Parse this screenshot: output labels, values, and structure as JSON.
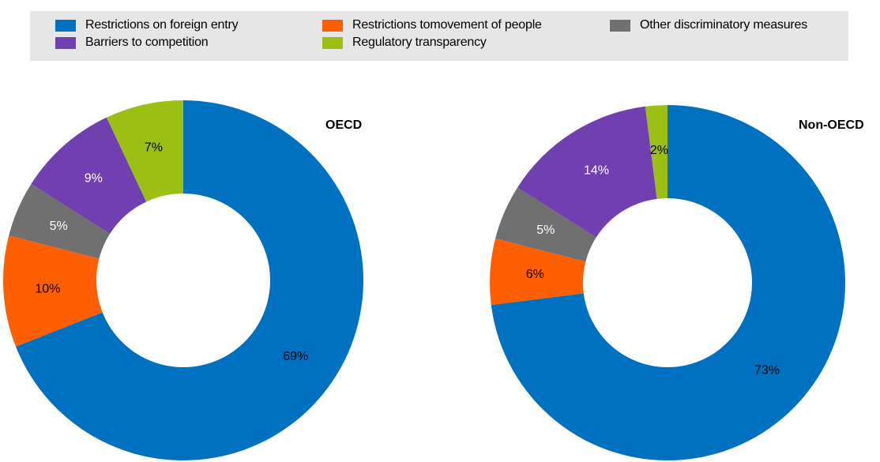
{
  "legend": {
    "items": [
      {
        "label": "Restrictions on foreign entry",
        "color": "#0070c0"
      },
      {
        "label": "Restrictions tomovement of people",
        "color": "#ff5f00"
      },
      {
        "label": "Other discriminatory measures",
        "color": "#707070"
      },
      {
        "label": "Barriers to competition",
        "color": "#7040b0"
      },
      {
        "label": "Regulatory transparency",
        "color": "#9bbf12"
      }
    ]
  },
  "chart_data": [
    {
      "type": "pie",
      "title": "OECD",
      "categories": [
        "Restrictions on foreign entry",
        "Restrictions tomovement of people",
        "Other discriminatory measures",
        "Barriers to competition",
        "Regulatory transparency"
      ],
      "values": [
        69,
        10,
        5,
        9,
        7
      ],
      "labels": [
        "69%",
        "10%",
        "5%",
        "9%",
        "7%"
      ],
      "colors": [
        "#0070c0",
        "#ff5f00",
        "#707070",
        "#7040b0",
        "#9bbf12"
      ],
      "label_colors": [
        "#000000",
        "#000000",
        "#ffffff",
        "#ffffff",
        "#000000"
      ]
    },
    {
      "type": "pie",
      "title": "Non-OECD",
      "categories": [
        "Restrictions on foreign entry",
        "Restrictions tomovement of people",
        "Other discriminatory measures",
        "Barriers to competition",
        "Regulatory transparency"
      ],
      "values": [
        73,
        6,
        5,
        14,
        2
      ],
      "labels": [
        "73%",
        "6%",
        "5%",
        "14%",
        "2%"
      ],
      "colors": [
        "#0070c0",
        "#ff5f00",
        "#707070",
        "#7040b0",
        "#9bbf12"
      ],
      "label_colors": [
        "#000000",
        "#000000",
        "#ffffff",
        "#ffffff",
        "#000000"
      ]
    }
  ]
}
